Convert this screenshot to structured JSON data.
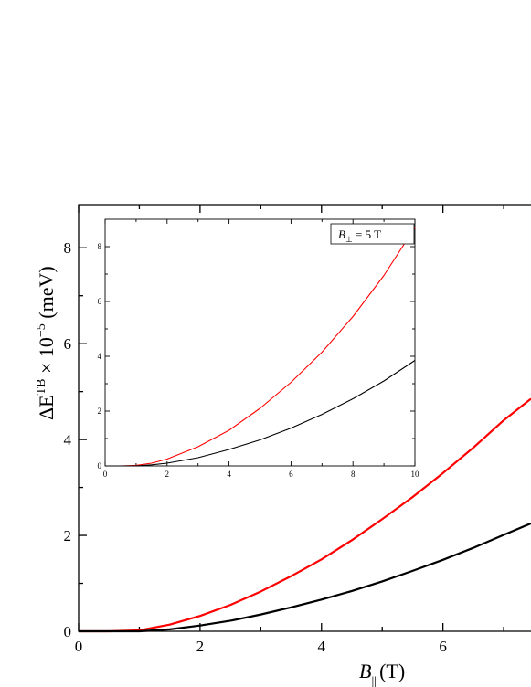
{
  "chart_data": [
    {
      "type": "line",
      "xlabel": {
        "symbol": "B",
        "subscript": "||",
        "unit": "(T)"
      },
      "ylabel": {
        "prefix": "ΔE",
        "superscript": "TB",
        "times": " × 10",
        "exponent": "−5",
        "unit": " (meV)"
      },
      "xlim": [
        0,
        7.45
      ],
      "ylim": [
        0,
        8.9
      ],
      "x_ticks": [
        "0",
        "2",
        "4",
        "6"
      ],
      "y_ticks": [
        "0",
        "2",
        "4",
        "6",
        "8"
      ],
      "series": [
        {
          "color": "#ff0000",
          "x": [
            0,
            0.5,
            1.0,
            1.5,
            2.0,
            2.5,
            3.0,
            3.5,
            4.0,
            4.5,
            5.0,
            5.5,
            6.0,
            6.5,
            7.0,
            7.45
          ],
          "y": [
            0,
            0,
            0.02,
            0.14,
            0.32,
            0.55,
            0.83,
            1.15,
            1.5,
            1.9,
            2.34,
            2.8,
            3.3,
            3.83,
            4.4,
            4.85
          ]
        },
        {
          "color": "#000000",
          "x": [
            0,
            0.5,
            1.0,
            1.5,
            2.0,
            2.5,
            3.0,
            3.5,
            4.0,
            4.5,
            5.0,
            5.5,
            6.0,
            6.5,
            7.0,
            7.45
          ],
          "y": [
            0,
            0,
            0,
            0.04,
            0.12,
            0.22,
            0.35,
            0.5,
            0.66,
            0.84,
            1.04,
            1.26,
            1.49,
            1.74,
            2.01,
            2.25
          ]
        }
      ]
    },
    {
      "type": "line",
      "annotation": {
        "symbol": "B",
        "subscript": "⊥",
        "value": " = 5 T"
      },
      "xlim": [
        0,
        10
      ],
      "ylim": [
        0,
        9
      ],
      "x_ticks": [
        "0",
        "2",
        "4",
        "6",
        "8",
        "10"
      ],
      "y_ticks": [
        "0",
        "2",
        "4",
        "6",
        "8"
      ],
      "series": [
        {
          "color": "#ff0000",
          "x": [
            0,
            0.5,
            1.0,
            1.5,
            2,
            3,
            4,
            5,
            6,
            7,
            8,
            9,
            10
          ],
          "y": [
            0,
            0,
            0.02,
            0.1,
            0.25,
            0.7,
            1.3,
            2.1,
            3.05,
            4.15,
            5.45,
            6.95,
            8.7
          ]
        },
        {
          "color": "#000000",
          "x": [
            0,
            0.5,
            1.0,
            1.5,
            2,
            3,
            4,
            5,
            6,
            7,
            8,
            9,
            10
          ],
          "y": [
            0,
            0,
            0,
            0.04,
            0.1,
            0.3,
            0.6,
            0.95,
            1.38,
            1.88,
            2.45,
            3.1,
            3.85
          ]
        }
      ]
    }
  ]
}
